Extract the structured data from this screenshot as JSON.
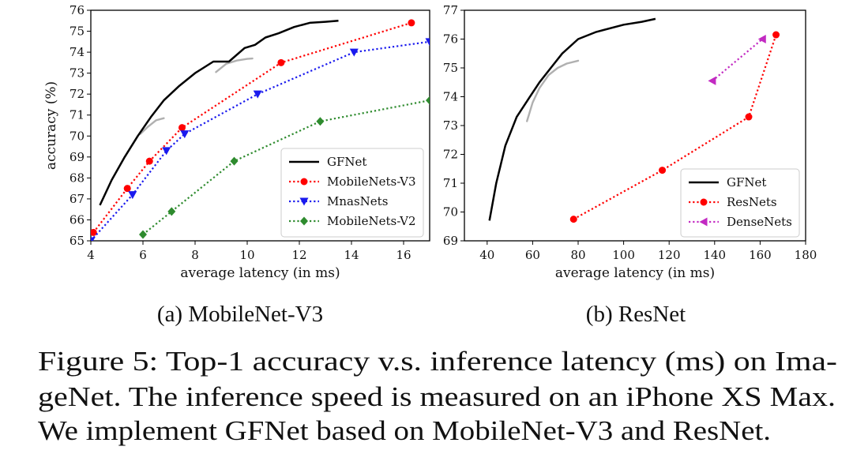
{
  "chart_data": [
    {
      "type": "line",
      "subcaption": "(a)  MobileNet-V3",
      "xlabel": "average latency (in ms)",
      "ylabel": "accuracy (%)",
      "xlim": [
        4,
        17
      ],
      "ylim": [
        65,
        76
      ],
      "xticks": [
        4,
        6,
        8,
        10,
        12,
        14,
        16
      ],
      "yticks": [
        65,
        66,
        67,
        68,
        69,
        70,
        71,
        72,
        73,
        74,
        75,
        76
      ],
      "legend_position": "lower-right",
      "series": [
        {
          "name": "GFNet",
          "style": "solid",
          "color": "#000000",
          "marker": "none",
          "x": [
            4.35,
            4.8,
            5.3,
            5.8,
            6.3,
            6.8,
            7.4,
            8.0,
            8.7,
            9.3,
            9.9,
            10.3,
            10.7,
            11.2,
            11.8,
            12.4,
            13.0,
            13.5
          ],
          "y": [
            66.7,
            67.9,
            69.0,
            70.0,
            70.9,
            71.7,
            72.4,
            73.0,
            73.55,
            73.55,
            74.2,
            74.35,
            74.7,
            74.9,
            75.2,
            75.4,
            75.45,
            75.5
          ]
        },
        {
          "name": "MobileNets-V3",
          "style": "dotted",
          "color": "#ff0000",
          "marker": "circle",
          "x": [
            4.1,
            5.4,
            6.25,
            7.5,
            11.3,
            16.3
          ],
          "y": [
            65.4,
            67.5,
            68.8,
            70.4,
            73.5,
            75.4
          ]
        },
        {
          "name": "MnasNets",
          "style": "dotted",
          "color": "#1a1aee",
          "marker": "triangle-down",
          "x": [
            4.0,
            5.6,
            6.9,
            7.6,
            10.4,
            14.1,
            17.0
          ],
          "y": [
            65.0,
            67.2,
            69.3,
            70.1,
            72.0,
            74.0,
            74.5
          ]
        },
        {
          "name": "MobileNets-V2",
          "style": "dotted",
          "color": "#2e8b2e",
          "marker": "diamond",
          "x": [
            6.0,
            7.1,
            9.5,
            12.8,
            17.0
          ],
          "y": [
            65.3,
            66.4,
            68.8,
            70.7,
            71.7
          ]
        }
      ],
      "extra_curves": [
        {
          "color": "#b0b0b0",
          "x": [
            5.9,
            6.2,
            6.5,
            6.8
          ],
          "y": [
            70.1,
            70.45,
            70.75,
            70.85
          ]
        },
        {
          "color": "#b0b0b0",
          "x": [
            8.8,
            9.2,
            9.6,
            10.0,
            10.2
          ],
          "y": [
            73.05,
            73.45,
            73.6,
            73.68,
            73.7
          ]
        }
      ]
    },
    {
      "type": "line",
      "subcaption": "(b)  ResNet",
      "xlabel": "average latency (in ms)",
      "ylabel": "",
      "xlim": [
        30,
        180
      ],
      "ylim": [
        69,
        77
      ],
      "xticks": [
        40,
        60,
        80,
        100,
        120,
        140,
        160,
        180
      ],
      "yticks": [
        69,
        70,
        71,
        72,
        73,
        74,
        75,
        76,
        77
      ],
      "legend_position": "lower-right",
      "series": [
        {
          "name": "GFNet",
          "style": "solid",
          "color": "#000000",
          "marker": "none",
          "x": [
            41,
            44,
            48,
            53,
            58,
            63,
            68,
            73,
            80,
            88,
            100,
            108,
            114
          ],
          "y": [
            69.7,
            71.0,
            72.3,
            73.3,
            73.9,
            74.5,
            75.0,
            75.5,
            76.0,
            76.25,
            76.5,
            76.6,
            76.7
          ]
        },
        {
          "name": "ResNets",
          "style": "dotted",
          "color": "#ff0000",
          "marker": "circle",
          "x": [
            78,
            117,
            155,
            167
          ],
          "y": [
            69.75,
            71.45,
            73.3,
            76.15
          ]
        },
        {
          "name": "DenseNets",
          "style": "dotted",
          "color": "#c22ac2",
          "marker": "triangle-left",
          "x": [
            139,
            161
          ],
          "y": [
            74.55,
            76.0
          ]
        }
      ],
      "extra_curves": [
        {
          "color": "#b0b0b0",
          "x": [
            57.5,
            60,
            63,
            67,
            71,
            75,
            80
          ],
          "y": [
            73.15,
            73.8,
            74.3,
            74.75,
            75.0,
            75.15,
            75.25
          ]
        }
      ]
    }
  ],
  "caption": {
    "line1": "Figure 5:   Top-1 accuracy v.s. inference latency (ms) on Ima-",
    "line2": "geNet. The inference speed is measured on an iPhone XS Max.",
    "line3": "We implement GFNet based on MobileNet-V3 and ResNet."
  }
}
